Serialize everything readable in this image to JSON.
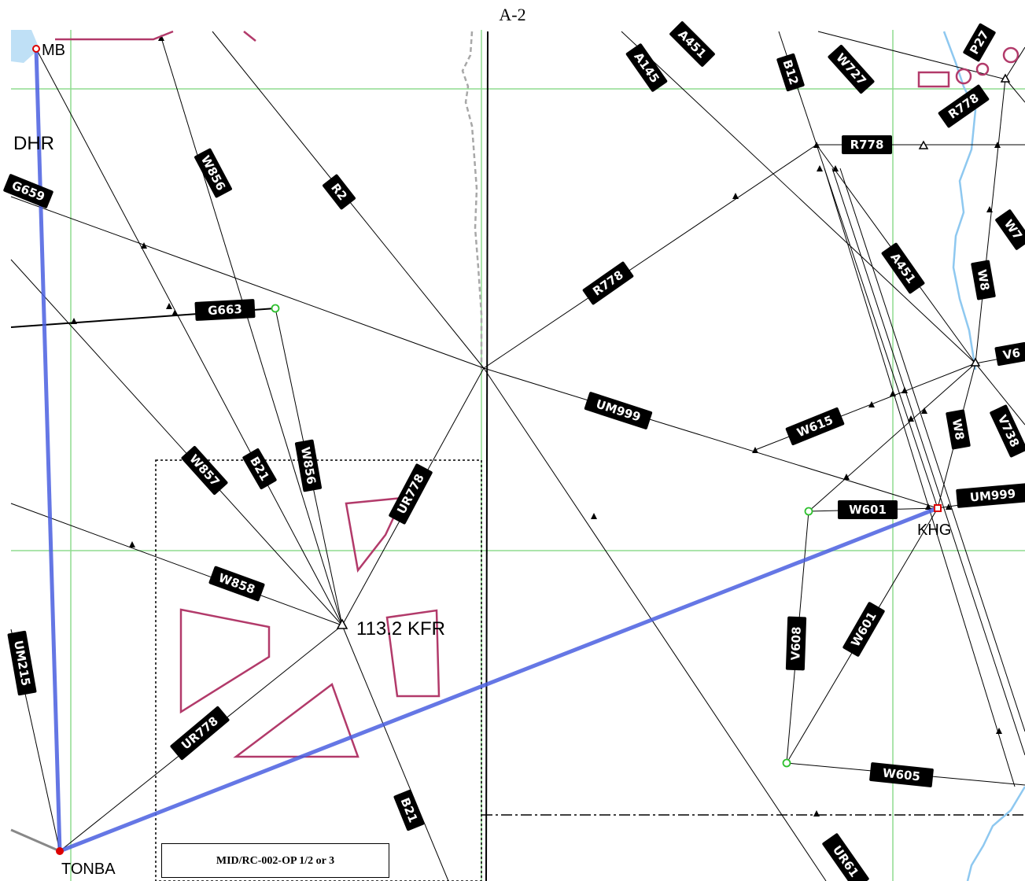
{
  "page_title": "A-2",
  "footer_reference": "MID/RC-002-OP 1/2  or 3",
  "colors": {
    "route_line": "#000000",
    "grid": "#8fdc8f",
    "restricted_area": "#b23a6a",
    "highlight_route": "#4a5fe0",
    "water": "#8ec8f0",
    "boundary": "#a0a0a0"
  },
  "places": {
    "dhr": "DHR",
    "mb": "MB",
    "kfr": "113.2 KFR",
    "khg": "KHG",
    "tonba": "TONBA"
  },
  "routes": {
    "g659": "G659",
    "w856_a": "W856",
    "r2": "R2",
    "g663": "G663",
    "w857": "W857",
    "b21_a": "B21",
    "w856_b": "W856",
    "ur778_a": "UR778",
    "w858": "W858",
    "um215": "UM215",
    "ur778_b": "UR778",
    "b21_b": "B21",
    "a145": "A145",
    "a451_a": "A451",
    "b12": "B12",
    "w727": "W727",
    "r778_a": "R778",
    "r778_b": "R778",
    "r778_c": "R778",
    "a451_b": "A451",
    "w8_a": "W8",
    "w7": "W7",
    "v6": "V6",
    "um999_a": "UM999",
    "w615": "W615",
    "w8_b": "W8",
    "v738": "V738",
    "w601_a": "W601",
    "um999_b": "UM999",
    "v608": "V608",
    "w601_b": "W601",
    "w605": "W605",
    "ur61": "UR61",
    "p27": "P27"
  }
}
